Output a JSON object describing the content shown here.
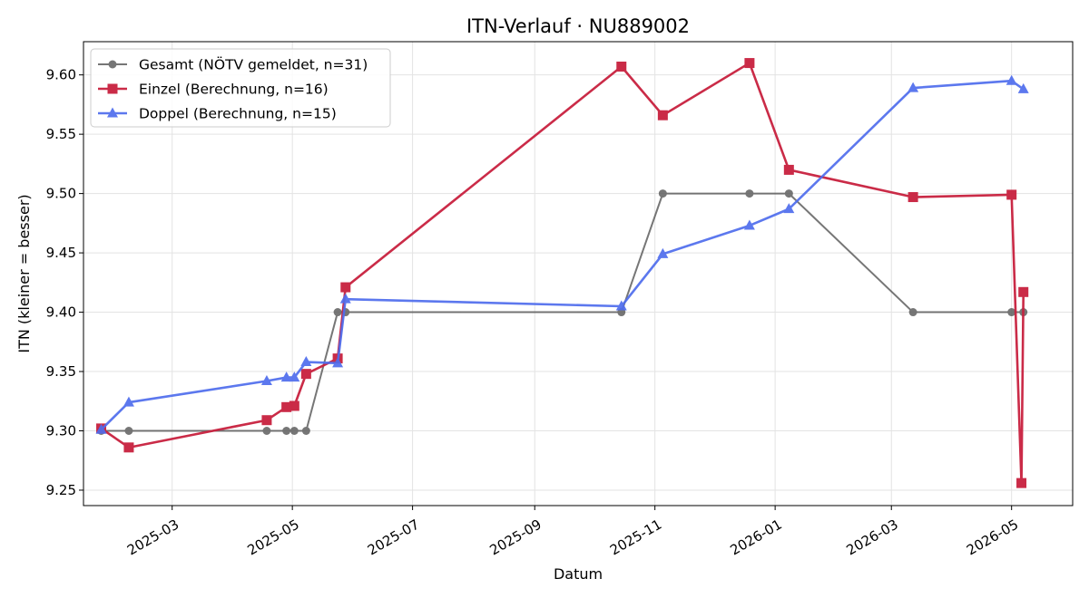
{
  "chart_data": {
    "type": "line",
    "title": "ITN-Verlauf · NU889002",
    "xlabel": "Datum",
    "ylabel": "ITN  (kleiner = besser)",
    "x_type": "date",
    "xlim": [
      "2025-01-15",
      "2026-06-01"
    ],
    "ylim": [
      9.237,
      9.628
    ],
    "yticks": [
      9.25,
      9.3,
      9.35,
      9.4,
      9.45,
      9.5,
      9.55,
      9.6
    ],
    "ytick_labels": [
      "9.25",
      "9.30",
      "9.35",
      "9.40",
      "9.45",
      "9.50",
      "9.55",
      "9.60"
    ],
    "xticks": [
      "2025-03-01",
      "2025-05-01",
      "2025-07-01",
      "2025-09-01",
      "2025-11-01",
      "2026-01-01",
      "2026-03-01",
      "2026-05-01"
    ],
    "xtick_labels": [
      "2025-03",
      "2025-05",
      "2025-07",
      "2025-09",
      "2025-11",
      "2026-01",
      "2026-03",
      "2026-05"
    ],
    "grid": true,
    "legend_position": "top-left",
    "series": [
      {
        "name": "Gesamt (NÖTV gemeldet, n=31)",
        "color": "#555555",
        "marker": "circle",
        "x": [
          "2025-01-24",
          "2025-02-07",
          "2025-04-18",
          "2025-04-28",
          "2025-05-02",
          "2025-05-08",
          "2025-05-24",
          "2025-05-28",
          "2025-10-15",
          "2025-11-05",
          "2025-12-19",
          "2026-01-08",
          "2026-03-12",
          "2026-05-01",
          "2026-05-07"
        ],
        "values": [
          9.3,
          9.3,
          9.3,
          9.3,
          9.3,
          9.3,
          9.4,
          9.4,
          9.4,
          9.5,
          9.5,
          9.5,
          9.4,
          9.4,
          9.4
        ]
      },
      {
        "name": "Einzel (Berechnung, n=16)",
        "color": "#c8203e",
        "marker": "square",
        "x": [
          "2025-01-24",
          "2025-02-07",
          "2025-04-18",
          "2025-04-28",
          "2025-05-02",
          "2025-05-08",
          "2025-05-24",
          "2025-05-28",
          "2025-10-15",
          "2025-11-05",
          "2025-12-19",
          "2026-01-08",
          "2026-03-12",
          "2026-05-01",
          "2026-05-06",
          "2026-05-07"
        ],
        "values": [
          9.302,
          9.286,
          9.309,
          9.32,
          9.321,
          9.348,
          9.361,
          9.421,
          9.607,
          9.566,
          9.61,
          9.52,
          9.497,
          9.499,
          9.256,
          9.417
        ]
      },
      {
        "name": "Doppel (Berechnung, n=15)",
        "color": "#4f6ded",
        "marker": "triangle",
        "x": [
          "2025-01-24",
          "2025-02-07",
          "2025-04-18",
          "2025-04-28",
          "2025-05-02",
          "2025-05-08",
          "2025-05-24",
          "2025-05-28",
          "2025-10-15",
          "2025-11-05",
          "2025-12-19",
          "2026-01-08",
          "2026-03-12",
          "2026-05-01",
          "2026-05-07"
        ],
        "values": [
          9.301,
          9.324,
          9.342,
          9.345,
          9.345,
          9.358,
          9.357,
          9.411,
          9.405,
          9.449,
          9.473,
          9.487,
          9.589,
          9.595,
          9.588
        ]
      }
    ]
  }
}
